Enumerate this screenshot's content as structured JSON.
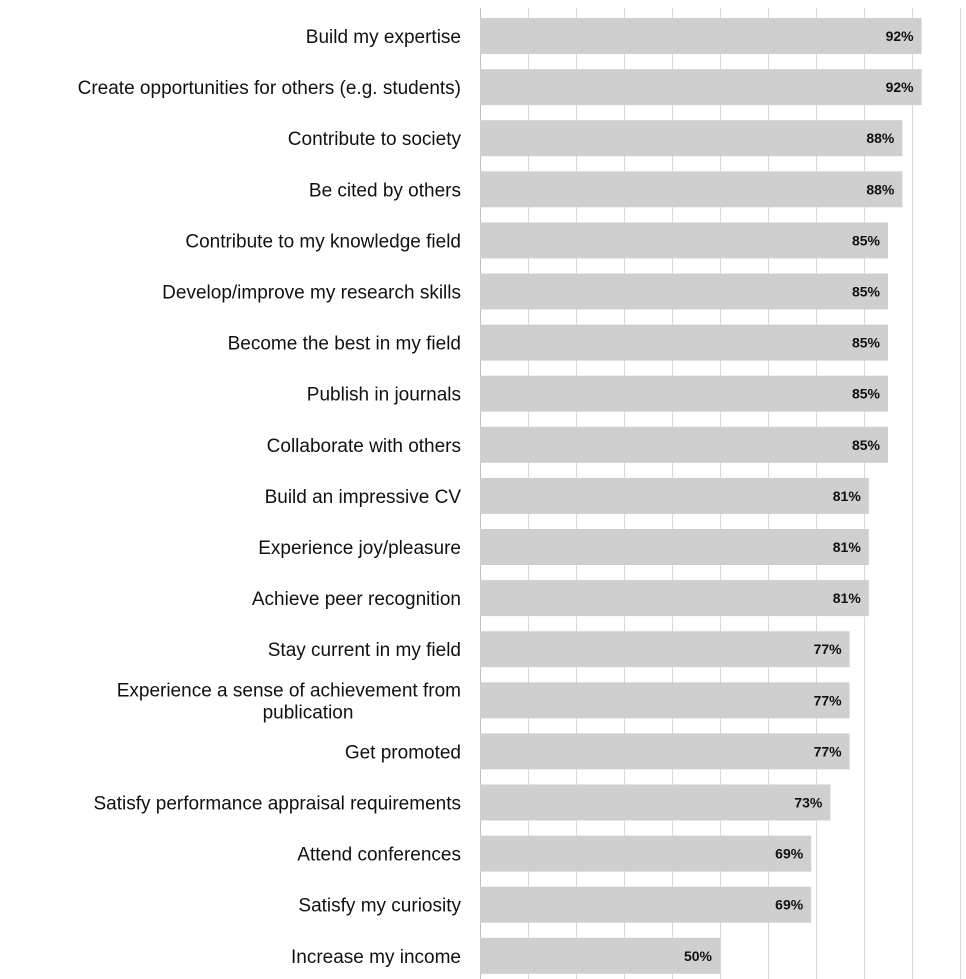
{
  "chart_data": {
    "type": "bar",
    "orientation": "horizontal",
    "categories": [
      "Build my expertise",
      "Create opportunities for others (e.g. students)",
      "Contribute to society",
      "Be cited by others",
      "Contribute to my knowledge field",
      "Develop/improve my research skills",
      "Become the best in my field",
      "Publish in journals",
      "Collaborate with others",
      "Build an impressive CV",
      "Experience joy/pleasure",
      "Achieve peer recognition",
      "Stay current in my field",
      "Experience a sense of achievement from publication",
      "Get promoted",
      "Satisfy performance appraisal requirements",
      "Attend conferences",
      "Satisfy my curiosity",
      "Increase my income"
    ],
    "category_lines": [
      [
        "Build my expertise"
      ],
      [
        "Create opportunities for others (e.g. students)"
      ],
      [
        "Contribute to society"
      ],
      [
        "Be cited by others"
      ],
      [
        "Contribute to my knowledge field"
      ],
      [
        "Develop/improve my research skills"
      ],
      [
        "Become the best in my field"
      ],
      [
        "Publish in journals"
      ],
      [
        "Collaborate with others"
      ],
      [
        "Build an impressive CV"
      ],
      [
        "Experience joy/pleasure"
      ],
      [
        "Achieve peer recognition"
      ],
      [
        "Stay current in my field"
      ],
      [
        "Experience a sense of achievement from",
        "publication"
      ],
      [
        "Get promoted"
      ],
      [
        "Satisfy performance appraisal requirements"
      ],
      [
        "Attend conferences"
      ],
      [
        "Satisfy my curiosity"
      ],
      [
        "Increase my income"
      ]
    ],
    "values": [
      92,
      92,
      88,
      88,
      85,
      85,
      85,
      85,
      85,
      81,
      81,
      81,
      77,
      77,
      77,
      73,
      69,
      69,
      50
    ],
    "value_labels": [
      "92%",
      "92%",
      "88%",
      "88%",
      "85%",
      "85%",
      "85%",
      "85%",
      "85%",
      "81%",
      "81%",
      "81%",
      "77%",
      "77%",
      "77%",
      "73%",
      "69%",
      "69%",
      "50%"
    ],
    "xlim": [
      0,
      100
    ],
    "x_grid_step": 10,
    "grid": true,
    "bar_color": "#cfcfcf",
    "grid_color": "#d9d9d9",
    "title": "",
    "xlabel": "",
    "ylabel": ""
  }
}
